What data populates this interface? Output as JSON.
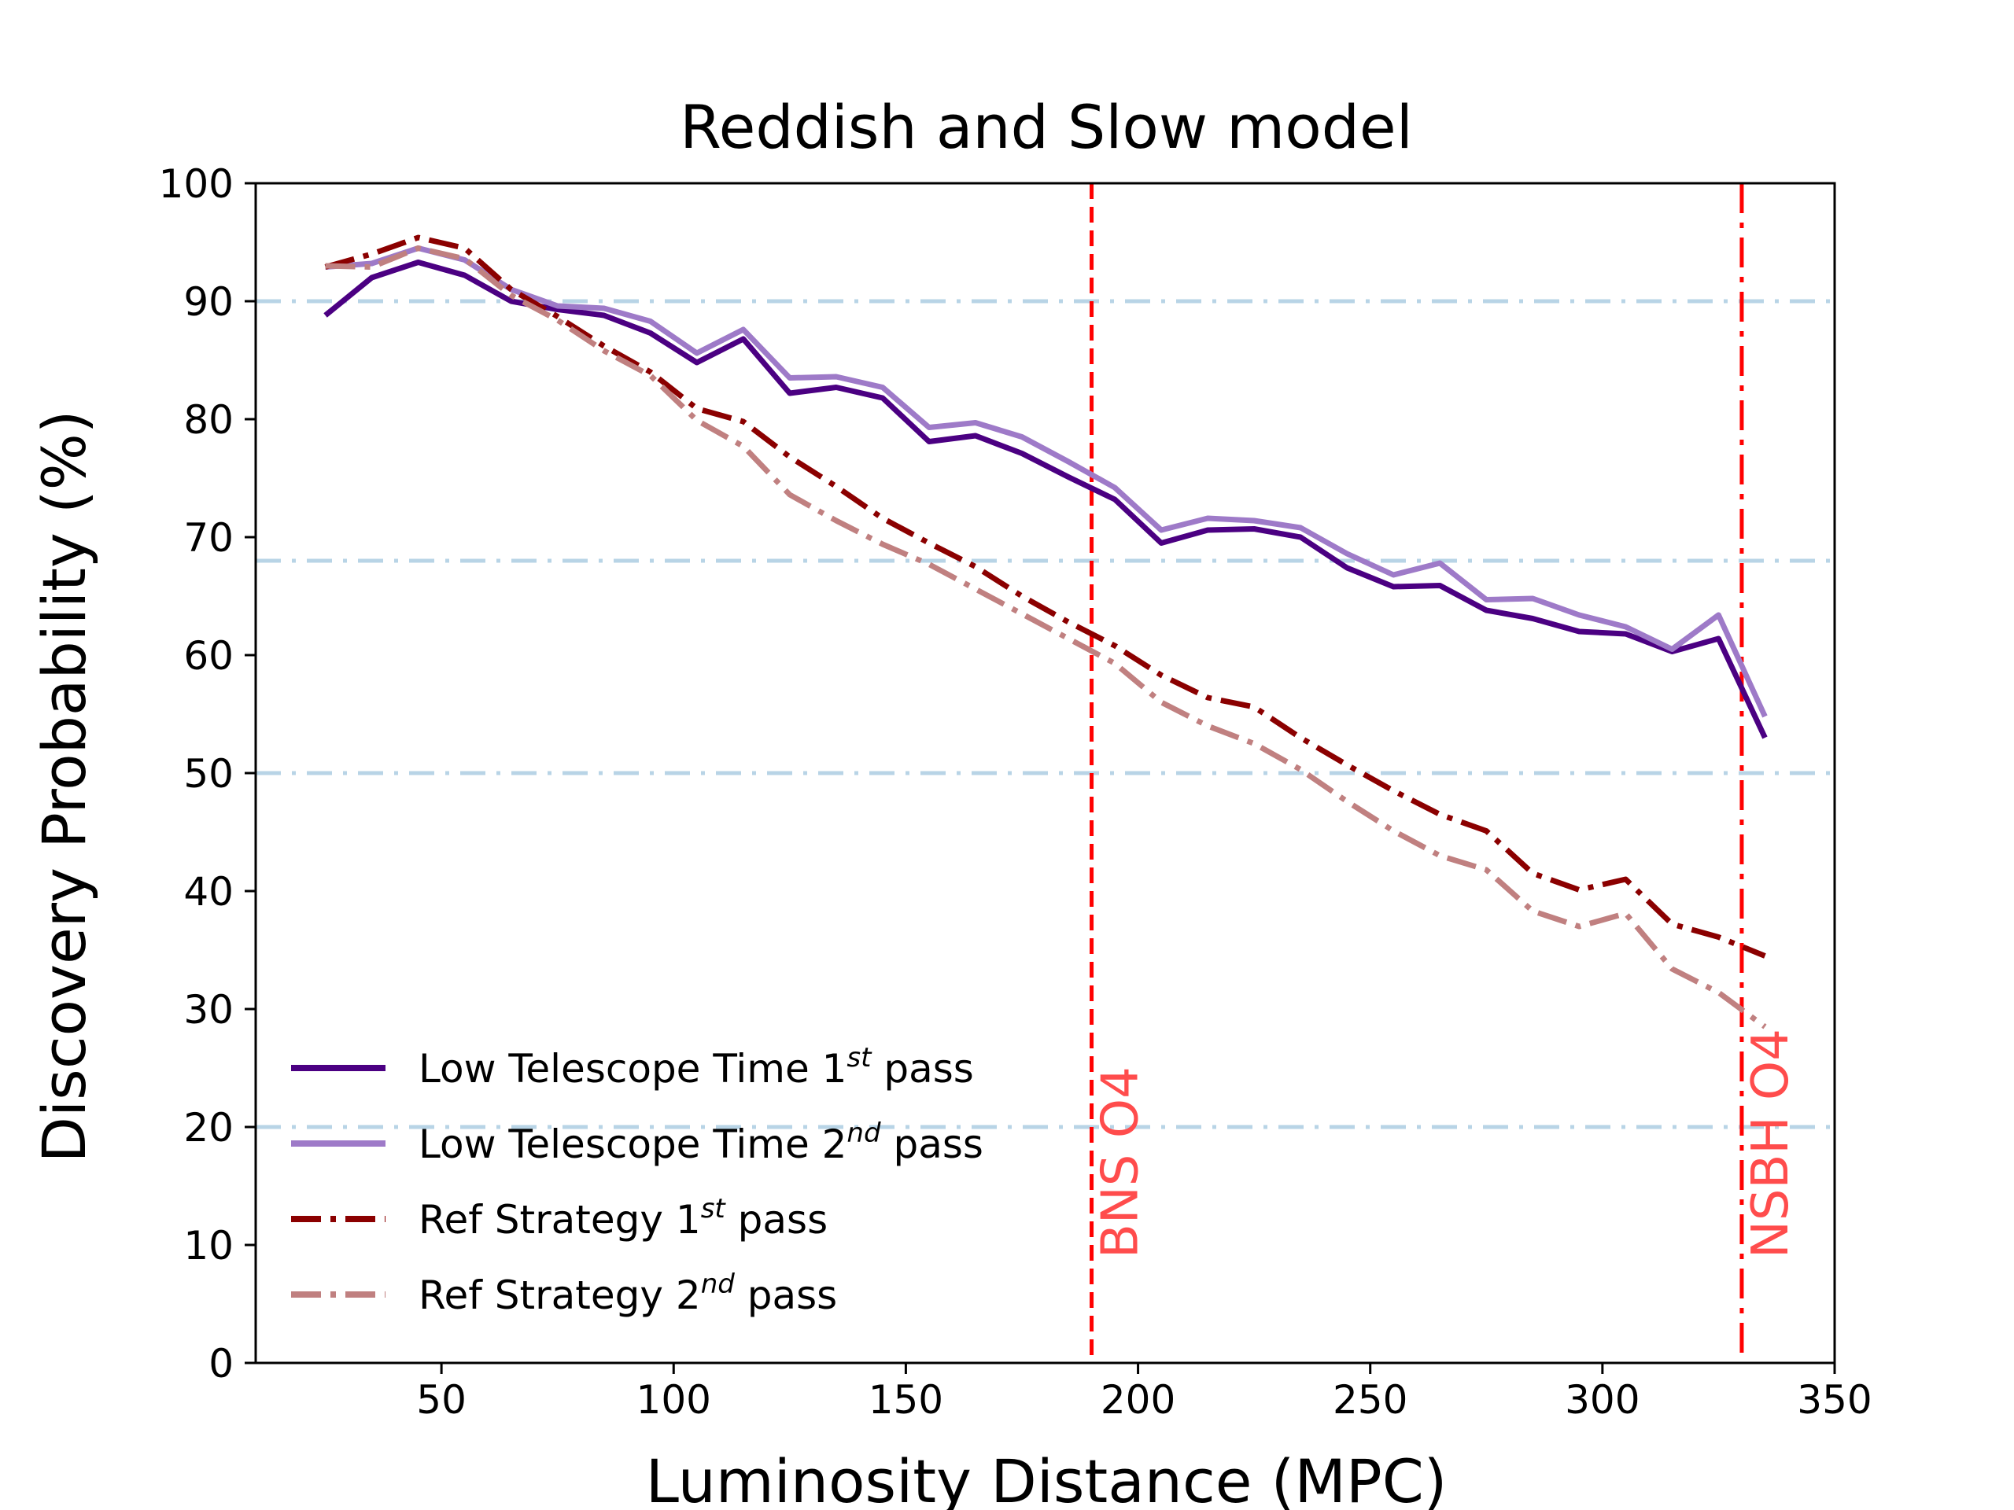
{
  "chart_data": {
    "type": "line",
    "title": "Reddish and Slow model",
    "xlabel": "Luminosity Distance (MPC)",
    "ylabel": "Discovery Probability (%)",
    "xlim": [
      10,
      350
    ],
    "ylim": [
      0,
      100
    ],
    "xticks": [
      50,
      100,
      150,
      200,
      250,
      300,
      350
    ],
    "yticks": [
      0,
      10,
      20,
      30,
      40,
      50,
      60,
      70,
      80,
      90,
      100
    ],
    "x": [
      25,
      35,
      45,
      55,
      65,
      75,
      85,
      95,
      105,
      115,
      125,
      135,
      145,
      155,
      165,
      175,
      185,
      195,
      205,
      215,
      225,
      235,
      245,
      255,
      265,
      275,
      285,
      295,
      305,
      315,
      325,
      335
    ],
    "series": [
      {
        "name": "Low Telescope Time 1st pass",
        "label_base": "Low Telescope Time 1",
        "label_sup": "st",
        "label_tail": " pass",
        "color": "#4b0082",
        "style": "solid",
        "values": [
          88.8,
          92.0,
          93.3,
          92.2,
          90.0,
          89.3,
          88.8,
          87.3,
          84.8,
          86.8,
          82.2,
          82.7,
          81.8,
          78.1,
          78.6,
          77.1,
          75.1,
          73.2,
          69.5,
          70.6,
          70.7,
          70.0,
          67.4,
          65.8,
          65.9,
          63.8,
          63.1,
          62.0,
          61.8,
          60.3,
          61.4,
          53.0
        ]
      },
      {
        "name": "Low Telescope Time 2nd pass",
        "label_base": "Low Telescope Time 2",
        "label_sup": "nd",
        "label_tail": " pass",
        "color": "#9e7ac8",
        "style": "solid",
        "values": [
          92.9,
          93.2,
          94.5,
          93.5,
          91.0,
          89.6,
          89.4,
          88.3,
          85.6,
          87.6,
          83.5,
          83.6,
          82.7,
          79.3,
          79.7,
          78.5,
          76.4,
          74.2,
          70.6,
          71.6,
          71.4,
          70.8,
          68.6,
          66.8,
          67.8,
          64.7,
          64.8,
          63.4,
          62.4,
          60.5,
          63.4,
          54.8
        ]
      },
      {
        "name": "Ref Strategy 1st pass",
        "label_base": "Ref Strategy 1",
        "label_sup": "st",
        "label_tail": " pass",
        "color": "#8b0000",
        "style": "dashdot",
        "values": [
          92.9,
          94.0,
          95.4,
          94.5,
          91.0,
          88.7,
          86.2,
          84.0,
          80.9,
          79.8,
          76.8,
          74.3,
          71.6,
          69.5,
          67.5,
          65.0,
          62.8,
          60.8,
          58.3,
          56.4,
          55.6,
          53.0,
          50.7,
          48.5,
          46.5,
          45.1,
          41.5,
          40.1,
          41.0,
          37.2,
          36.1,
          34.5
        ]
      },
      {
        "name": "Ref Strategy 2nd pass",
        "label_base": "Ref Strategy 2",
        "label_sup": "nd",
        "label_tail": " pass",
        "color": "#c08080",
        "style": "dashdot",
        "values": [
          93.0,
          92.9,
          94.5,
          93.6,
          90.5,
          88.4,
          85.8,
          83.7,
          79.9,
          77.7,
          73.6,
          71.4,
          69.4,
          67.7,
          65.6,
          63.5,
          61.4,
          59.3,
          56.0,
          54.0,
          52.5,
          50.3,
          47.6,
          45.1,
          43.0,
          41.8,
          38.3,
          37.0,
          38.1,
          33.4,
          31.4,
          28.5
        ]
      }
    ],
    "hlines": [
      {
        "y": 90,
        "color": "#b8d4e6",
        "style": "dashdot"
      },
      {
        "y": 68,
        "color": "#b8d4e6",
        "style": "dashdot"
      },
      {
        "y": 50,
        "color": "#b8d4e6",
        "style": "dashdot"
      },
      {
        "y": 20,
        "color": "#b8d4e6",
        "style": "dashdot"
      }
    ],
    "vlines": [
      {
        "x": 190,
        "label": "BNS O4",
        "color": "#ff0000",
        "style": "dashed"
      },
      {
        "x": 330,
        "label": "NSBH O4",
        "color": "#ff0000",
        "style": "dashdot"
      }
    ],
    "vline_label_color": "#ff4c4c",
    "legend": "lower-left"
  }
}
